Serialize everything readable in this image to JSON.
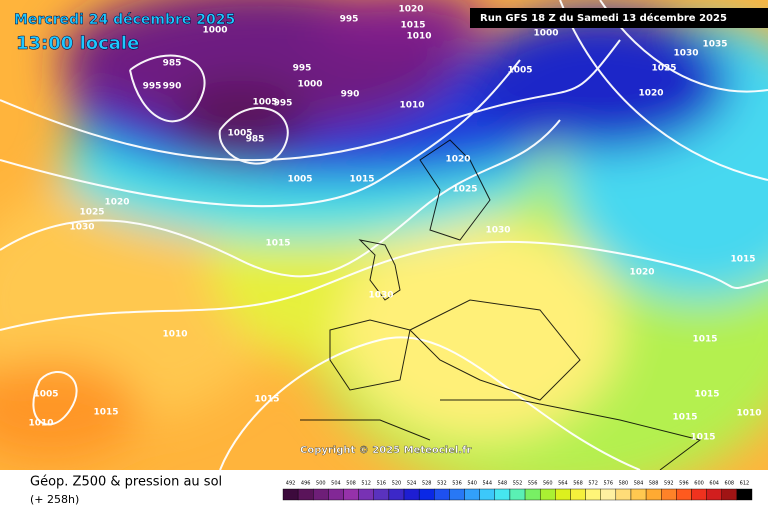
{
  "header": {
    "title": "Mercredi 24 décembre 2025",
    "subtitle": "13:00 locale",
    "run": "Run GFS 18 Z du Samedi 13 décembre 2025"
  },
  "copyright": "Copyright © 2025 Meteociel.fr",
  "footer": {
    "title": "Géop. Z500 & pression au sol",
    "lead": "(+ 258h)"
  },
  "scale": {
    "values": [
      492,
      496,
      500,
      504,
      508,
      512,
      516,
      520,
      524,
      528,
      532,
      536,
      540,
      544,
      548,
      552,
      556,
      560,
      564,
      568,
      572,
      576,
      580,
      584,
      588,
      592,
      596,
      600,
      604,
      608,
      612
    ],
    "colors": [
      "#3c0a3c",
      "#5a145a",
      "#6e1e78",
      "#822896",
      "#9632aa",
      "#7832b4",
      "#5a32be",
      "#3c28c8",
      "#1e1ed2",
      "#0a28e6",
      "#1e50f0",
      "#2878f5",
      "#32a0fa",
      "#3cc8fa",
      "#46e6f0",
      "#5af0b4",
      "#78f064",
      "#aaf032",
      "#dcf01e",
      "#f5f03c",
      "#fff578",
      "#fff0a0",
      "#ffdc78",
      "#ffc850",
      "#ffaa32",
      "#ff8228",
      "#ff5a1e",
      "#f0321e",
      "#d21e1e",
      "#a01414",
      "#000000"
    ]
  },
  "isobars": [
    "995",
    "1000",
    "995",
    "990",
    "985",
    "995",
    "990",
    "1005",
    "995",
    "1005",
    "985",
    "1010",
    "1005",
    "1015",
    "1020",
    "1025",
    "1030",
    "1015",
    "1020",
    "1025",
    "1030",
    "1030",
    "1010",
    "1005",
    "1010",
    "1015",
    "1015",
    "1005",
    "1000",
    "1030",
    "1025",
    "1035",
    "1020",
    "1020",
    "1015",
    "1015",
    "1015",
    "1015",
    "1015",
    "1010",
    "1020",
    "1015",
    "1010",
    "1000"
  ]
}
